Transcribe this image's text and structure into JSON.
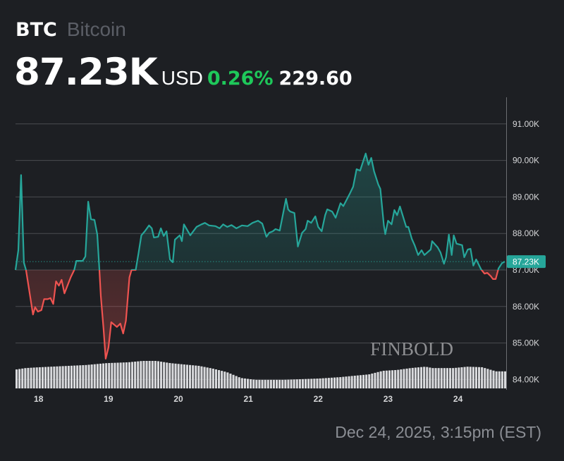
{
  "header": {
    "symbol": "BTC",
    "name": "Bitcoin",
    "price": "87.23K",
    "currency": "USD",
    "change_pct": "0.26%",
    "change_abs": "229.60"
  },
  "footer": {
    "timestamp": "Dec 24, 2025, 3:15pm (EST)"
  },
  "watermark": "FINBOLD",
  "colors": {
    "up": "#26a69a",
    "down": "#ef5350",
    "positive_change": "#1ec85a",
    "background": "#1d1f23",
    "volume": "#d9dadd"
  },
  "chart_data": {
    "type": "line",
    "baseline": 87.0,
    "current_price_label": "87.23K",
    "current_price": 87.23,
    "ylim": [
      83.8,
      91.4
    ],
    "xlim": [
      17.67,
      24.69
    ],
    "y_ticks": [
      {
        "v": 91,
        "label": "91.00K"
      },
      {
        "v": 90,
        "label": "90.00K"
      },
      {
        "v": 89,
        "label": "89.00K"
      },
      {
        "v": 88,
        "label": "88.00K"
      },
      {
        "v": 87,
        "label": "87.00K"
      },
      {
        "v": 86,
        "label": "86.00K"
      },
      {
        "v": 85,
        "label": "85.00K"
      },
      {
        "v": 84,
        "label": "84.00K"
      }
    ],
    "x_ticks": [
      {
        "v": 18,
        "label": "18"
      },
      {
        "v": 19,
        "label": "19"
      },
      {
        "v": 20,
        "label": "20"
      },
      {
        "v": 21,
        "label": "21"
      },
      {
        "v": 22,
        "label": "22"
      },
      {
        "v": 23,
        "label": "23"
      },
      {
        "v": 24,
        "label": "24"
      }
    ],
    "grid": true,
    "price": [
      [
        17.67,
        87.0
      ],
      [
        17.71,
        87.54
      ],
      [
        17.75,
        89.6
      ],
      [
        17.79,
        87.2
      ],
      [
        17.82,
        87.0
      ],
      [
        17.92,
        85.78
      ],
      [
        17.95,
        85.98
      ],
      [
        17.99,
        85.86
      ],
      [
        18.04,
        85.9
      ],
      [
        18.08,
        86.2
      ],
      [
        18.13,
        86.2
      ],
      [
        18.17,
        86.23
      ],
      [
        18.21,
        86.07
      ],
      [
        18.25,
        86.69
      ],
      [
        18.29,
        86.57
      ],
      [
        18.33,
        86.73
      ],
      [
        18.37,
        86.36
      ],
      [
        18.46,
        86.8
      ],
      [
        18.51,
        87.0
      ],
      [
        18.54,
        87.25
      ],
      [
        18.63,
        87.25
      ],
      [
        18.67,
        87.37
      ],
      [
        18.71,
        88.87
      ],
      [
        18.75,
        88.39
      ],
      [
        18.8,
        88.37
      ],
      [
        18.84,
        87.97
      ],
      [
        18.87,
        87.0
      ],
      [
        18.89,
        86.29
      ],
      [
        18.93,
        85.38
      ],
      [
        18.96,
        84.57
      ],
      [
        19.0,
        84.88
      ],
      [
        19.04,
        85.57
      ],
      [
        19.12,
        85.44
      ],
      [
        19.17,
        85.53
      ],
      [
        19.21,
        85.26
      ],
      [
        19.25,
        85.61
      ],
      [
        19.3,
        86.8
      ],
      [
        19.33,
        87.0
      ],
      [
        19.39,
        87.0
      ],
      [
        19.43,
        87.46
      ],
      [
        19.47,
        87.95
      ],
      [
        19.52,
        88.06
      ],
      [
        19.58,
        88.22
      ],
      [
        19.62,
        88.14
      ],
      [
        19.65,
        87.89
      ],
      [
        19.71,
        87.91
      ],
      [
        19.75,
        88.14
      ],
      [
        19.79,
        87.93
      ],
      [
        19.83,
        88.06
      ],
      [
        19.88,
        87.29
      ],
      [
        19.92,
        87.21
      ],
      [
        19.95,
        87.83
      ],
      [
        20.02,
        87.95
      ],
      [
        20.05,
        87.79
      ],
      [
        20.08,
        88.25
      ],
      [
        20.17,
        87.95
      ],
      [
        20.26,
        88.18
      ],
      [
        20.33,
        88.25
      ],
      [
        20.38,
        88.29
      ],
      [
        20.44,
        88.22
      ],
      [
        20.53,
        88.2
      ],
      [
        20.59,
        88.14
      ],
      [
        20.64,
        88.25
      ],
      [
        20.7,
        88.18
      ],
      [
        20.76,
        88.23
      ],
      [
        20.83,
        88.14
      ],
      [
        20.91,
        88.22
      ],
      [
        20.99,
        88.2
      ],
      [
        21.06,
        88.29
      ],
      [
        21.14,
        88.35
      ],
      [
        21.2,
        88.27
      ],
      [
        21.26,
        87.91
      ],
      [
        21.3,
        88.02
      ],
      [
        21.35,
        88.06
      ],
      [
        21.39,
        88.12
      ],
      [
        21.45,
        88.08
      ],
      [
        21.54,
        88.95
      ],
      [
        21.57,
        88.66
      ],
      [
        21.6,
        88.6
      ],
      [
        21.66,
        88.56
      ],
      [
        21.71,
        87.64
      ],
      [
        21.77,
        88.02
      ],
      [
        21.82,
        88.12
      ],
      [
        21.85,
        88.35
      ],
      [
        21.9,
        88.29
      ],
      [
        21.96,
        88.47
      ],
      [
        22.0,
        88.18
      ],
      [
        22.05,
        88.06
      ],
      [
        22.1,
        88.5
      ],
      [
        22.13,
        88.66
      ],
      [
        22.2,
        88.6
      ],
      [
        22.25,
        88.43
      ],
      [
        22.32,
        88.83
      ],
      [
        22.36,
        88.75
      ],
      [
        22.45,
        89.08
      ],
      [
        22.5,
        89.28
      ],
      [
        22.55,
        89.76
      ],
      [
        22.6,
        89.72
      ],
      [
        22.68,
        90.19
      ],
      [
        22.72,
        89.88
      ],
      [
        22.76,
        90.07
      ],
      [
        22.8,
        89.7
      ],
      [
        22.86,
        89.34
      ],
      [
        22.89,
        89.22
      ],
      [
        22.94,
        88.22
      ],
      [
        22.96,
        87.98
      ],
      [
        23.0,
        88.35
      ],
      [
        23.05,
        88.25
      ],
      [
        23.09,
        88.64
      ],
      [
        23.13,
        88.5
      ],
      [
        23.17,
        88.74
      ],
      [
        23.26,
        88.18
      ],
      [
        23.29,
        88.18
      ],
      [
        23.34,
        87.85
      ],
      [
        23.38,
        87.68
      ],
      [
        23.43,
        87.41
      ],
      [
        23.48,
        87.54
      ],
      [
        23.52,
        87.41
      ],
      [
        23.61,
        87.56
      ],
      [
        23.63,
        87.79
      ],
      [
        23.71,
        87.62
      ],
      [
        23.75,
        87.48
      ],
      [
        23.8,
        87.17
      ],
      [
        23.83,
        87.35
      ],
      [
        23.87,
        87.97
      ],
      [
        23.91,
        87.41
      ],
      [
        23.94,
        87.95
      ],
      [
        23.98,
        87.72
      ],
      [
        24.06,
        87.68
      ],
      [
        24.09,
        87.35
      ],
      [
        24.14,
        87.56
      ],
      [
        24.18,
        87.58
      ],
      [
        24.22,
        87.12
      ],
      [
        24.26,
        87.29
      ],
      [
        24.33,
        87.02
      ],
      [
        24.38,
        86.9
      ],
      [
        24.42,
        86.92
      ],
      [
        24.47,
        86.83
      ],
      [
        24.5,
        86.75
      ],
      [
        24.54,
        86.75
      ],
      [
        24.58,
        87.04
      ],
      [
        24.63,
        87.19
      ],
      [
        24.67,
        87.23
      ]
    ],
    "volume_relative": [
      [
        17.67,
        69
      ],
      [
        17.8,
        74
      ],
      [
        18.0,
        77
      ],
      [
        18.66,
        85
      ],
      [
        18.96,
        92
      ],
      [
        19.27,
        95
      ],
      [
        19.47,
        100
      ],
      [
        19.67,
        100
      ],
      [
        19.87,
        92
      ],
      [
        20.07,
        87
      ],
      [
        20.28,
        82
      ],
      [
        20.48,
        72
      ],
      [
        20.68,
        59
      ],
      [
        20.88,
        38
      ],
      [
        21.09,
        31
      ],
      [
        21.49,
        31
      ],
      [
        21.69,
        33
      ],
      [
        22.0,
        36
      ],
      [
        22.3,
        41
      ],
      [
        22.5,
        46
      ],
      [
        22.71,
        51
      ],
      [
        22.91,
        64
      ],
      [
        23.11,
        67
      ],
      [
        23.31,
        74
      ],
      [
        23.52,
        79
      ],
      [
        23.62,
        74
      ],
      [
        23.77,
        74
      ],
      [
        23.92,
        74
      ],
      [
        24.12,
        79
      ],
      [
        24.33,
        77
      ],
      [
        24.53,
        62
      ],
      [
        24.69,
        62
      ]
    ]
  }
}
